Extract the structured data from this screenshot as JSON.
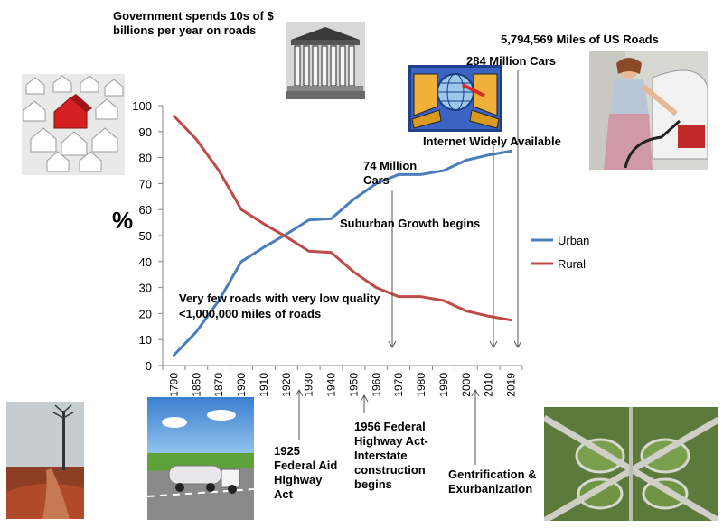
{
  "chart_data": {
    "type": "line",
    "x": [
      "1790",
      "1850",
      "1870",
      "1900",
      "1910",
      "1920",
      "1930",
      "1940",
      "1950",
      "1960",
      "1970",
      "1980",
      "1990",
      "2000",
      "2010",
      "2019"
    ],
    "series": [
      {
        "name": "Urban",
        "color": "#4a7ebb",
        "values": [
          4,
          13,
          25,
          40,
          45.5,
          50.5,
          56,
          56.5,
          64,
          70,
          73.5,
          73.5,
          75,
          79,
          81,
          82.5
        ]
      },
      {
        "name": "Rural",
        "color": "#be4b48",
        "values": [
          96,
          87,
          75,
          60,
          54.5,
          49.5,
          44,
          43.5,
          36,
          30,
          26.5,
          26.5,
          25,
          21,
          19,
          17.5
        ]
      }
    ],
    "ylabel": "%",
    "ylim": [
      0,
      100
    ],
    "yticks": [
      0,
      10,
      20,
      30,
      40,
      50,
      60,
      70,
      80,
      90,
      100
    ],
    "grid": false,
    "legend": "right"
  },
  "annotations": {
    "government": [
      "Government spends 10s of $",
      "billions per year on roads"
    ],
    "miles": "5,794,569 Miles of US Roads",
    "cars284": "284 Million Cars",
    "internet": "Internet  Widely Available",
    "cars74": [
      "74 Million",
      "Cars"
    ],
    "suburban": "Suburban  Growth begins",
    "few_roads": [
      "Very few roads with very low quality",
      "<1,000,000 miles of roads"
    ],
    "act1925": [
      "1925",
      "Federal Aid",
      "Highway",
      "Act"
    ],
    "act1956": [
      "1956  Federal",
      "Highway Act-",
      "Interstate",
      "construction",
      "begins"
    ],
    "gentrification": [
      "Gentrification &",
      "Exurbanization"
    ]
  },
  "images": {
    "houses": "houses-photo",
    "courthouse": "supreme-court-photo",
    "internet": "internet-globe-icon",
    "gas_station": "woman-fueling-car-photo",
    "tree": "lone-tree-dirt-road-photo",
    "truck": "tanker-truck-highway-photo",
    "interchange": "highway-interchange-aerial-photo"
  }
}
